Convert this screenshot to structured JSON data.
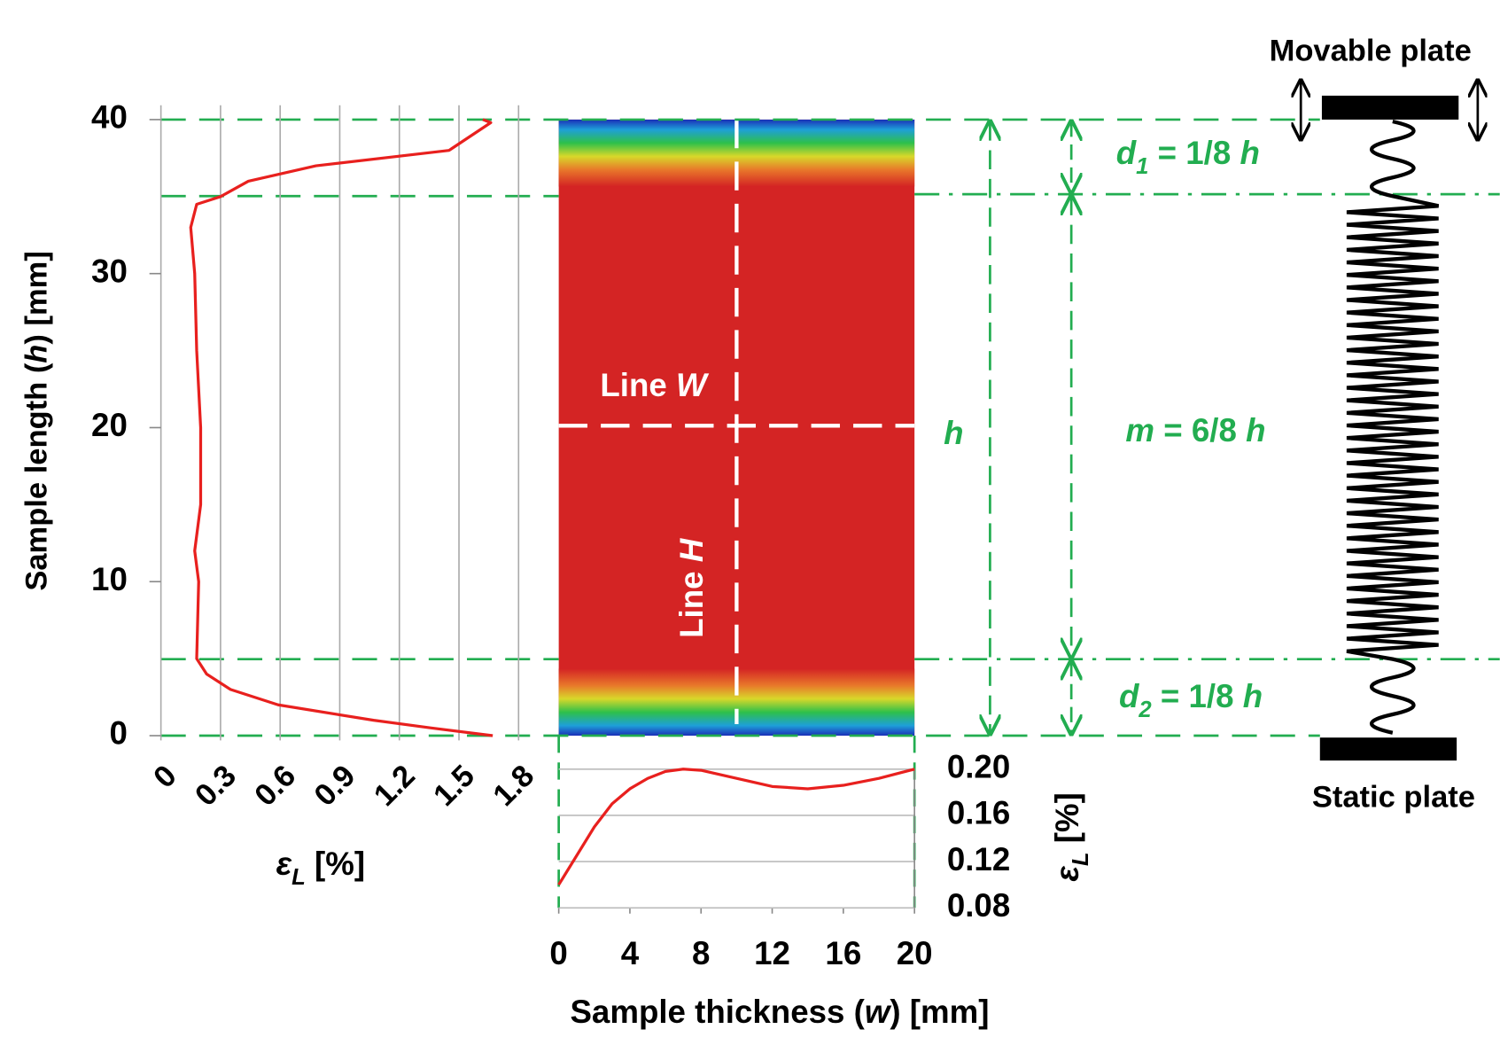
{
  "chart_data": [
    {
      "type": "line",
      "x": [
        1.67,
        1.36,
        1.07,
        0.59,
        0.35,
        0.23,
        0.18,
        0.19,
        0.17,
        0.2,
        0.2,
        0.18,
        0.17,
        0.15,
        0.18,
        0.3,
        0.44,
        0.78,
        1.45,
        1.66,
        1.62
      ],
      "values": [
        0,
        0.5,
        1,
        2,
        3,
        4,
        5,
        10,
        12,
        15,
        20,
        25,
        30,
        33,
        34.5,
        35,
        36,
        37,
        38,
        39.8,
        40
      ],
      "xlabel": [
        "ε",
        "L",
        " [%]"
      ],
      "ylabel": [
        "Sample length (",
        "h",
        ") [mm]"
      ],
      "xlim": [
        0,
        1.8
      ],
      "ylim": [
        0,
        40
      ],
      "xticks": [
        0,
        0.3,
        0.6,
        0.9,
        1.2,
        1.5,
        1.8
      ],
      "yticks": [
        0,
        10,
        20,
        30,
        40
      ],
      "grid": "x",
      "color": "#e8201e"
    },
    {
      "type": "line",
      "x": [
        0,
        1,
        2,
        3,
        4,
        5,
        6,
        7,
        8,
        10,
        12,
        14,
        16,
        18,
        20
      ],
      "values": [
        0.1,
        0.125,
        0.15,
        0.17,
        0.183,
        0.192,
        0.198,
        0.2,
        0.199,
        0.192,
        0.185,
        0.183,
        0.186,
        0.192,
        0.2
      ],
      "xlabel": [
        "Sample thickness (",
        "w",
        ") [mm]"
      ],
      "ylabel": [
        "ε",
        "L",
        " [%]"
      ],
      "xlim": [
        0,
        20
      ],
      "ylim": [
        0.08,
        0.2
      ],
      "xticks": [
        0,
        4,
        8,
        12,
        16,
        20
      ],
      "yticks": [
        {
          "value": 0.08,
          "label": "0.08"
        },
        {
          "value": 0.12,
          "label": "0.12"
        },
        {
          "value": 0.16,
          "label": "0.16"
        },
        {
          "value": 0.2,
          "label": "0.20"
        }
      ],
      "grid": "y",
      "color": "#e8201e"
    }
  ],
  "labels": {
    "line_w": [
      "Line ",
      "W"
    ],
    "line_h": [
      "Line ",
      "H"
    ],
    "h": "h",
    "m": [
      "m",
      " = 6/8 ",
      "h"
    ],
    "d1": [
      "d",
      "1",
      " = 1/8 ",
      "h"
    ],
    "d2": [
      "d",
      "2",
      " = 1/8 ",
      "h"
    ],
    "movable_plate": "Movable plate",
    "static_plate": "Static plate"
  }
}
